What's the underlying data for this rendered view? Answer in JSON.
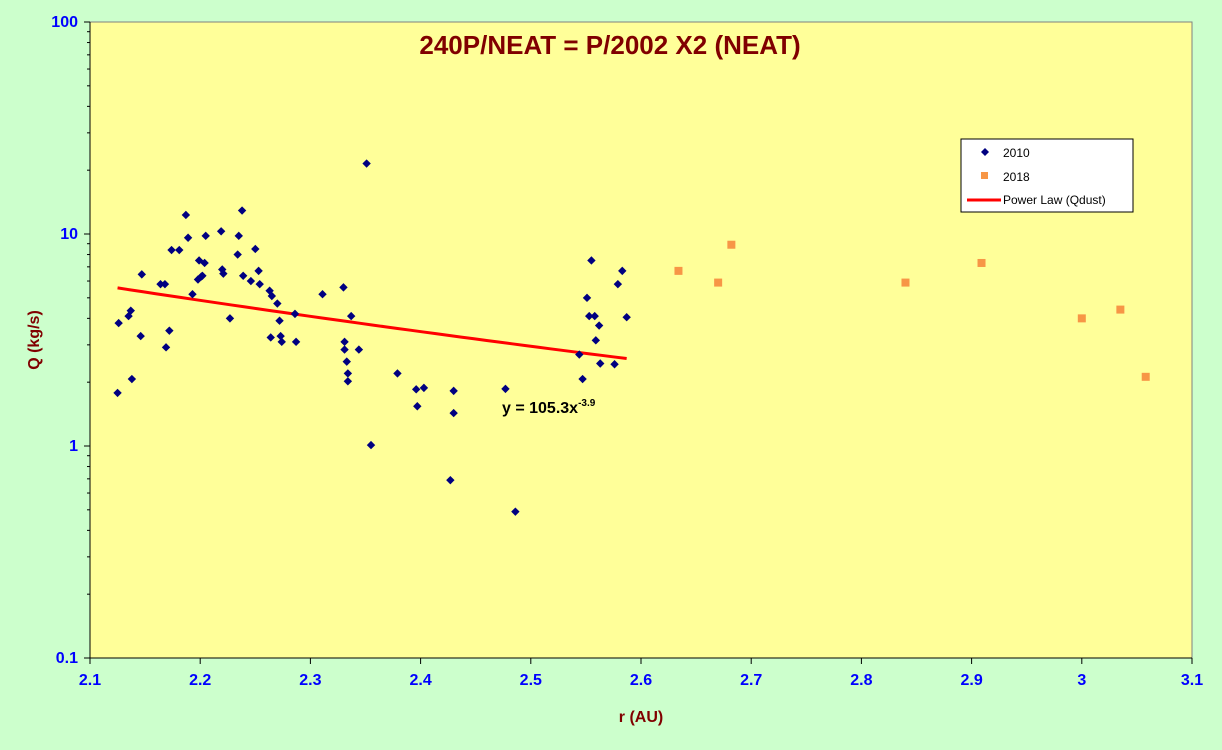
{
  "chart_data": {
    "type": "scatter",
    "title": "240P/NEAT = P/2002 X2 (NEAT)",
    "xlabel": "r (AU)",
    "ylabel": "Q (kg/s)",
    "xlim": [
      2.1,
      3.1
    ],
    "ylim": [
      0.1,
      100
    ],
    "yscale": "log",
    "xticks": [
      2.1,
      2.2,
      2.3,
      2.4,
      2.5,
      2.6,
      2.7,
      2.8,
      2.9,
      3.0,
      3.1
    ],
    "xtick_labels": [
      "2.1",
      "2.2",
      "2.3",
      "2.4",
      "2.5",
      "2.6",
      "2.7",
      "2.8",
      "2.9",
      "3",
      "3.1"
    ],
    "yticks": [
      0.1,
      1,
      10,
      100
    ],
    "ytick_labels": [
      "0.1",
      "1",
      "10",
      "100"
    ],
    "legend_position": "top-right",
    "series": [
      {
        "name": "2010",
        "marker": "diamond",
        "color": "#000080",
        "points": [
          [
            2.125,
            1.78
          ],
          [
            2.126,
            3.8
          ],
          [
            2.135,
            4.1
          ],
          [
            2.137,
            4.35
          ],
          [
            2.138,
            2.07
          ],
          [
            2.146,
            3.3
          ],
          [
            2.147,
            6.45
          ],
          [
            2.164,
            5.8
          ],
          [
            2.168,
            5.8
          ],
          [
            2.169,
            2.92
          ],
          [
            2.172,
            3.5
          ],
          [
            2.174,
            8.4
          ],
          [
            2.181,
            8.4
          ],
          [
            2.187,
            12.3
          ],
          [
            2.189,
            9.6
          ],
          [
            2.193,
            5.2
          ],
          [
            2.198,
            6.1
          ],
          [
            2.199,
            7.5
          ],
          [
            2.201,
            6.3
          ],
          [
            2.202,
            6.35
          ],
          [
            2.204,
            7.3
          ],
          [
            2.205,
            9.8
          ],
          [
            2.219,
            10.3
          ],
          [
            2.22,
            6.8
          ],
          [
            2.221,
            6.5
          ],
          [
            2.227,
            4.0
          ],
          [
            2.234,
            8.0
          ],
          [
            2.235,
            9.8
          ],
          [
            2.238,
            12.9
          ],
          [
            2.239,
            6.35
          ],
          [
            2.246,
            6.0
          ],
          [
            2.25,
            8.5
          ],
          [
            2.253,
            6.7
          ],
          [
            2.254,
            5.8
          ],
          [
            2.263,
            5.4
          ],
          [
            2.264,
            3.25
          ],
          [
            2.265,
            5.1
          ],
          [
            2.27,
            4.7
          ],
          [
            2.272,
            3.9
          ],
          [
            2.273,
            3.3
          ],
          [
            2.274,
            3.1
          ],
          [
            2.286,
            4.2
          ],
          [
            2.287,
            3.1
          ],
          [
            2.311,
            5.2
          ],
          [
            2.33,
            5.6
          ],
          [
            2.331,
            3.1
          ],
          [
            2.331,
            2.85
          ],
          [
            2.333,
            2.5
          ],
          [
            2.334,
            2.2
          ],
          [
            2.334,
            2.02
          ],
          [
            2.337,
            4.1
          ],
          [
            2.344,
            2.85
          ],
          [
            2.351,
            21.5
          ],
          [
            2.355,
            1.01
          ],
          [
            2.379,
            2.2
          ],
          [
            2.396,
            1.85
          ],
          [
            2.397,
            1.54
          ],
          [
            2.403,
            1.88
          ],
          [
            2.427,
            0.69
          ],
          [
            2.43,
            1.82
          ],
          [
            2.43,
            1.43
          ],
          [
            2.477,
            1.86
          ],
          [
            2.486,
            0.49
          ],
          [
            2.544,
            2.7
          ],
          [
            2.547,
            2.07
          ],
          [
            2.551,
            5.0
          ],
          [
            2.553,
            4.1
          ],
          [
            2.555,
            7.5
          ],
          [
            2.558,
            4.1
          ],
          [
            2.559,
            3.15
          ],
          [
            2.562,
            3.7
          ],
          [
            2.563,
            2.45
          ],
          [
            2.576,
            2.43
          ],
          [
            2.579,
            5.8
          ],
          [
            2.583,
            6.7
          ],
          [
            2.587,
            4.05
          ]
        ]
      },
      {
        "name": "2018",
        "marker": "square",
        "color": "#f79646",
        "points": [
          [
            2.634,
            6.7
          ],
          [
            2.67,
            5.9
          ],
          [
            2.682,
            8.9
          ],
          [
            2.84,
            5.9
          ],
          [
            2.909,
            7.3
          ],
          [
            3.0,
            4.0
          ],
          [
            3.035,
            4.4
          ],
          [
            3.058,
            2.12
          ]
        ]
      },
      {
        "name": "Power Law (Qdust)",
        "type": "line",
        "color": "#ff0000",
        "equation": {
          "a": 105.3,
          "b": -3.9
        },
        "x_range": [
          2.125,
          2.587
        ]
      }
    ],
    "annotation": {
      "base": "y = 105.3x",
      "exponent": "-3.9",
      "x": 2.466,
      "y": 1.6
    }
  }
}
